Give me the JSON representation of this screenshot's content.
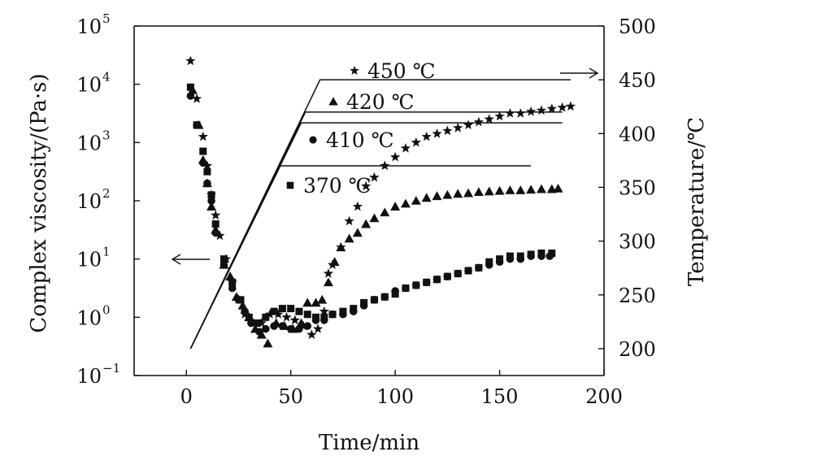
{
  "chart_data": {
    "type": "scatter",
    "xlabel": "Time/min",
    "ylabel_left": "Complex viscosity/(Pa·s)",
    "ylabel_right": "Temperature/℃",
    "xlim": [
      -25,
      200
    ],
    "x_ticks": [
      "0",
      "50",
      "100",
      "150",
      "200"
    ],
    "y_left_scale": "log",
    "y_left_lim_exp": [
      -1,
      5
    ],
    "y_left_ticks": [
      {
        "base": "10",
        "exp": "−1"
      },
      {
        "base": "10",
        "exp": "0"
      },
      {
        "base": "10",
        "exp": "1"
      },
      {
        "base": "10",
        "exp": "2"
      },
      {
        "base": "10",
        "exp": "3"
      },
      {
        "base": "10",
        "exp": "4"
      },
      {
        "base": "10",
        "exp": "5"
      }
    ],
    "y_right_lim": [
      175,
      500
    ],
    "y_right_ticks": [
      "200",
      "250",
      "300",
      "350",
      "400",
      "450",
      "500"
    ],
    "arrow_left_label_axis": "left",
    "arrow_right_label_axis": "right",
    "temperature_profiles": [
      {
        "name": "450 ℃",
        "start": [
          2,
          200
        ],
        "ramp_end": [
          64,
          450
        ],
        "hold_end": [
          184,
          450
        ]
      },
      {
        "name": "420 ℃",
        "start": [
          2,
          200
        ],
        "ramp_end": [
          57,
          420
        ],
        "hold_end": [
          180,
          420
        ]
      },
      {
        "name": "410 ℃",
        "start": [
          2,
          200
        ],
        "ramp_end": [
          55,
          410
        ],
        "hold_end": [
          180,
          410
        ]
      },
      {
        "name": "370 ℃",
        "start": [
          2,
          200
        ],
        "ramp_end": [
          45,
          370
        ],
        "hold_end": [
          165,
          370
        ]
      }
    ],
    "series": [
      {
        "name": "450 ℃",
        "marker": "star",
        "legend_label": "450 ℃",
        "points": [
          [
            2,
            4.4
          ],
          [
            5,
            3.75
          ],
          [
            8,
            3.1
          ],
          [
            10,
            2.6
          ],
          [
            12,
            2.1
          ],
          [
            14,
            1.75
          ],
          [
            16,
            1.4
          ],
          [
            19,
            1.0
          ],
          [
            22,
            0.6
          ],
          [
            25,
            0.3
          ],
          [
            28,
            0.05
          ],
          [
            32,
            -0.1
          ],
          [
            36,
            -0.1
          ],
          [
            40,
            0.05
          ],
          [
            44,
            0.05
          ],
          [
            48,
            0.0
          ],
          [
            52,
            -0.05
          ],
          [
            56,
            -0.15
          ],
          [
            60,
            -0.3
          ],
          [
            63,
            -0.2
          ],
          [
            66,
            0.1
          ],
          [
            68,
            0.75
          ],
          [
            70,
            0.9
          ],
          [
            74,
            1.2
          ],
          [
            78,
            1.65
          ],
          [
            82,
            1.9
          ],
          [
            86,
            2.25
          ],
          [
            90,
            2.4
          ],
          [
            95,
            2.6
          ],
          [
            100,
            2.75
          ],
          [
            105,
            2.9
          ],
          [
            110,
            3.0
          ],
          [
            115,
            3.1
          ],
          [
            120,
            3.15
          ],
          [
            125,
            3.2
          ],
          [
            130,
            3.25
          ],
          [
            135,
            3.3
          ],
          [
            140,
            3.35
          ],
          [
            145,
            3.4
          ],
          [
            150,
            3.45
          ],
          [
            155,
            3.5
          ],
          [
            160,
            3.5
          ],
          [
            165,
            3.53
          ],
          [
            170,
            3.55
          ],
          [
            175,
            3.58
          ],
          [
            180,
            3.6
          ],
          [
            184,
            3.62
          ]
        ]
      },
      {
        "name": "420 ℃",
        "marker": "triangle",
        "legend_label": "420 ℃",
        "points": [
          [
            3,
            3.9
          ],
          [
            6,
            3.3
          ],
          [
            8,
            2.7
          ],
          [
            10,
            2.3
          ],
          [
            12,
            1.9
          ],
          [
            14,
            1.5
          ],
          [
            18,
            0.9
          ],
          [
            21,
            0.7
          ],
          [
            24,
            0.35
          ],
          [
            27,
            0.2
          ],
          [
            30,
            0.0
          ],
          [
            33,
            -0.2
          ],
          [
            36,
            -0.3
          ],
          [
            39,
            -0.45
          ],
          [
            43,
            -0.1
          ],
          [
            47,
            -0.15
          ],
          [
            51,
            -0.2
          ],
          [
            55,
            -0.1
          ],
          [
            58,
            0.25
          ],
          [
            62,
            0.25
          ],
          [
            65,
            0.3
          ],
          [
            68,
            0.6
          ],
          [
            71,
            0.95
          ],
          [
            74,
            1.2
          ],
          [
            78,
            1.35
          ],
          [
            82,
            1.45
          ],
          [
            86,
            1.6
          ],
          [
            90,
            1.7
          ],
          [
            95,
            1.8
          ],
          [
            100,
            1.9
          ],
          [
            105,
            1.95
          ],
          [
            110,
            2.0
          ],
          [
            115,
            2.05
          ],
          [
            120,
            2.08
          ],
          [
            125,
            2.1
          ],
          [
            130,
            2.12
          ],
          [
            135,
            2.13
          ],
          [
            140,
            2.15
          ],
          [
            145,
            2.16
          ],
          [
            150,
            2.17
          ],
          [
            155,
            2.18
          ],
          [
            160,
            2.18
          ],
          [
            165,
            2.19
          ],
          [
            170,
            2.2
          ],
          [
            175,
            2.2
          ],
          [
            178,
            2.21
          ]
        ]
      },
      {
        "name": "410 ℃",
        "marker": "circle",
        "legend_label": "410 ℃",
        "points": [
          [
            2,
            3.8
          ],
          [
            5,
            3.3
          ],
          [
            8,
            2.65
          ],
          [
            10,
            2.3
          ],
          [
            12,
            2.0
          ],
          [
            14,
            1.45
          ],
          [
            18,
            0.9
          ],
          [
            22,
            0.5
          ],
          [
            25,
            0.3
          ],
          [
            28,
            0.1
          ],
          [
            31,
            -0.1
          ],
          [
            35,
            -0.25
          ],
          [
            38,
            -0.2
          ],
          [
            42,
            -0.15
          ],
          [
            46,
            -0.15
          ],
          [
            50,
            -0.2
          ],
          [
            54,
            -0.2
          ],
          [
            58,
            -0.15
          ],
          [
            62,
            -0.05
          ],
          [
            66,
            -0.05
          ],
          [
            70,
            0.05
          ],
          [
            75,
            0.05
          ],
          [
            80,
            0.1
          ],
          [
            85,
            0.2
          ],
          [
            90,
            0.3
          ],
          [
            95,
            0.35
          ],
          [
            100,
            0.45
          ],
          [
            105,
            0.5
          ],
          [
            110,
            0.55
          ],
          [
            115,
            0.6
          ],
          [
            120,
            0.65
          ],
          [
            125,
            0.7
          ],
          [
            130,
            0.75
          ],
          [
            135,
            0.8
          ],
          [
            140,
            0.85
          ],
          [
            145,
            0.9
          ],
          [
            150,
            0.95
          ],
          [
            155,
            1.0
          ],
          [
            160,
            1.0
          ],
          [
            165,
            1.05
          ],
          [
            170,
            1.05
          ],
          [
            174,
            1.05
          ]
        ]
      },
      {
        "name": "370 ℃",
        "marker": "square",
        "legend_label": "370 ℃",
        "points": [
          [
            2,
            3.95
          ],
          [
            5,
            3.3
          ],
          [
            8,
            2.85
          ],
          [
            10,
            2.5
          ],
          [
            12,
            2.1
          ],
          [
            14,
            1.6
          ],
          [
            18,
            1.0
          ],
          [
            22,
            0.6
          ],
          [
            26,
            0.3
          ],
          [
            30,
            0.0
          ],
          [
            34,
            -0.1
          ],
          [
            38,
            0.0
          ],
          [
            42,
            0.1
          ],
          [
            46,
            0.15
          ],
          [
            50,
            0.15
          ],
          [
            54,
            0.1
          ],
          [
            58,
            0.05
          ],
          [
            62,
            0.0
          ],
          [
            66,
            0.0
          ],
          [
            70,
            0.05
          ],
          [
            75,
            0.1
          ],
          [
            80,
            0.15
          ],
          [
            85,
            0.25
          ],
          [
            90,
            0.3
          ],
          [
            95,
            0.35
          ],
          [
            100,
            0.4
          ],
          [
            105,
            0.5
          ],
          [
            110,
            0.55
          ],
          [
            115,
            0.6
          ],
          [
            120,
            0.65
          ],
          [
            125,
            0.7
          ],
          [
            130,
            0.75
          ],
          [
            135,
            0.8
          ],
          [
            140,
            0.85
          ],
          [
            145,
            0.95
          ],
          [
            150,
            1.0
          ],
          [
            155,
            1.05
          ],
          [
            160,
            1.05
          ],
          [
            165,
            1.08
          ],
          [
            170,
            1.1
          ],
          [
            175,
            1.1
          ]
        ]
      }
    ]
  }
}
